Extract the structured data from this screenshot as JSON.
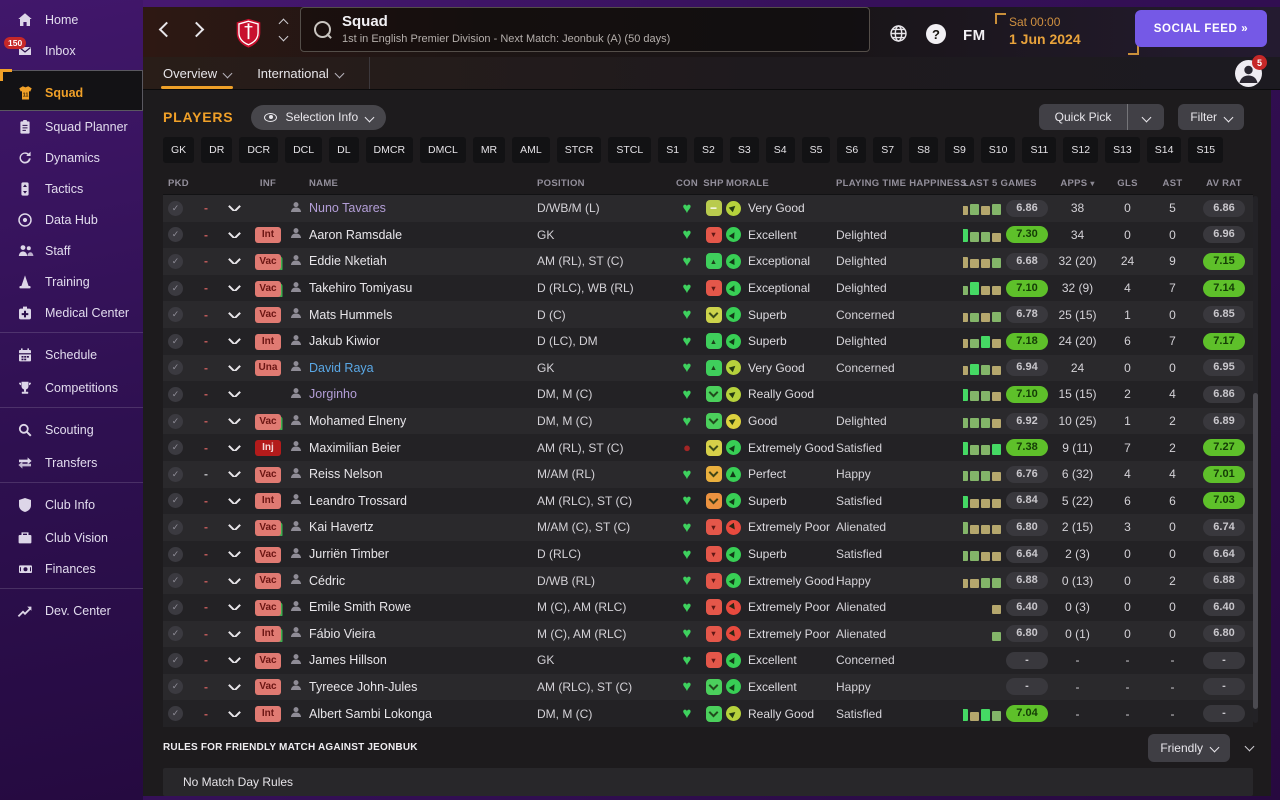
{
  "app": {
    "title": "Squad",
    "subtitle": "1st in English Premier Division - Next Match: Jeonbuk (A) (50 days)",
    "date_line1": "Sat 00:00",
    "date_line2": "1 Jun 2024",
    "social_feed_label": "SOCIAL FEED",
    "social_feed_arrows": "»",
    "fm_logo": "FM",
    "help_label": "?",
    "avatar_badge": "5"
  },
  "tabs": [
    {
      "label": "Overview",
      "active": true
    },
    {
      "label": "International",
      "active": false
    }
  ],
  "sidebar": {
    "items": [
      {
        "label": "Home",
        "icon": "home"
      },
      {
        "label": "Inbox",
        "icon": "inbox",
        "badge": "150"
      },
      {
        "label": "Squad",
        "icon": "shirt",
        "active": true,
        "group": true
      },
      {
        "label": "Squad Planner",
        "icon": "clipboard"
      },
      {
        "label": "Dynamics",
        "icon": "dynamics"
      },
      {
        "label": "Tactics",
        "icon": "tactics"
      },
      {
        "label": "Data Hub",
        "icon": "datahub"
      },
      {
        "label": "Staff",
        "icon": "staff"
      },
      {
        "label": "Training",
        "icon": "training"
      },
      {
        "label": "Medical Center",
        "icon": "medical"
      },
      {
        "label": "Schedule",
        "icon": "calendar",
        "group": true
      },
      {
        "label": "Competitions",
        "icon": "trophy"
      },
      {
        "label": "Scouting",
        "icon": "search",
        "group": true
      },
      {
        "label": "Transfers",
        "icon": "transfers"
      },
      {
        "label": "Club Info",
        "icon": "shield",
        "group": true
      },
      {
        "label": "Club Vision",
        "icon": "briefcase"
      },
      {
        "label": "Finances",
        "icon": "money"
      },
      {
        "label": "Dev. Center",
        "icon": "growth",
        "group": true
      }
    ]
  },
  "players_panel": {
    "title": "PLAYERS",
    "selection_info_label": "Selection Info",
    "quick_pick_label": "Quick Pick",
    "filter_label": "Filter",
    "position_filters": [
      "GK",
      "DR",
      "DCR",
      "DCL",
      "DL",
      "DMCR",
      "DMCL",
      "MR",
      "AML",
      "STCR",
      "STCL",
      "S1",
      "S2",
      "S3",
      "S4",
      "S5",
      "S6",
      "S7",
      "S8",
      "S9",
      "S10",
      "S11",
      "S12",
      "S13",
      "S14",
      "S15"
    ],
    "columns": [
      "PKD",
      "INF",
      "NAME",
      "POSITION",
      "CON",
      "SHP",
      "MORALE",
      "PLAYING TIME HAPPINESS",
      "LAST 5 GAMES",
      "APPS",
      "GLS",
      "AST",
      "AV RAT"
    ]
  },
  "players": [
    {
      "inf": "",
      "inf_style": "",
      "inf_accent": false,
      "name": "Nuno Tavares",
      "name_style": "loan",
      "pos": "D/WB/M (L)",
      "con": "fit",
      "shp": {
        "type": "minus",
        "bg": "#b9cb4e"
      },
      "morale": {
        "text": "Very Good",
        "color": "#b6d23c",
        "rot": -42
      },
      "happiness": "",
      "bars": [
        [
          "g",
          10
        ],
        [
          "t",
          9
        ],
        [
          "g",
          11
        ],
        [
          "t",
          9
        ],
        [
          "g",
          11
        ]
      ],
      "l5": "6.86",
      "l5_green": false,
      "apps": "38",
      "gls": "0",
      "ast": "5",
      "avr": "6.86",
      "avr_green": false
    },
    {
      "inf": "Int",
      "inf_style": "salmon",
      "inf_accent": false,
      "name": "Aaron Ramsdale",
      "name_style": "",
      "pos": "GK",
      "con": "fit",
      "shp": {
        "type": "down",
        "bg": "#e4574a"
      },
      "morale": {
        "text": "Excellent",
        "color": "#38cf55",
        "rot": -60
      },
      "happiness": "Delighted",
      "bars": [
        [
          "g",
          9
        ],
        [
          "b",
          13
        ],
        [
          "g",
          10
        ],
        [
          "g",
          10
        ],
        [
          "t",
          9
        ]
      ],
      "l5": "7.30",
      "l5_green": true,
      "apps": "34",
      "gls": "0",
      "ast": "0",
      "avr": "6.96",
      "avr_green": false
    },
    {
      "inf": "Vac",
      "inf_style": "salmon",
      "inf_accent": true,
      "name": "Eddie Nketiah",
      "name_style": "",
      "pos": "AM (RL), ST (C)",
      "con": "fit",
      "shp": {
        "type": "up",
        "bg": "#3fcf5c"
      },
      "morale": {
        "text": "Exceptional",
        "color": "#38cf55",
        "rot": -65
      },
      "happiness": "Delighted",
      "bars": [
        [
          "t",
          9
        ],
        [
          "t",
          11
        ],
        [
          "t",
          9
        ],
        [
          "t",
          9
        ],
        [
          "g",
          10
        ]
      ],
      "l5": "6.68",
      "l5_green": false,
      "apps": "32 (20)",
      "gls": "24",
      "ast": "9",
      "avr": "7.15",
      "avr_green": true
    },
    {
      "inf": "Vac",
      "inf_style": "salmon",
      "inf_accent": true,
      "name": "Takehiro Tomiyasu",
      "name_style": "",
      "pos": "D (RLC), WB (RL)",
      "con": "fit",
      "shp": {
        "type": "down",
        "bg": "#e4574a"
      },
      "morale": {
        "text": "Exceptional",
        "color": "#38cf55",
        "rot": -65
      },
      "happiness": "Delighted",
      "bars": [
        [
          "t",
          8
        ],
        [
          "g",
          9
        ],
        [
          "b",
          13
        ],
        [
          "t",
          9
        ],
        [
          "t",
          9
        ]
      ],
      "l5": "7.10",
      "l5_green": true,
      "apps": "32 (9)",
      "gls": "4",
      "ast": "7",
      "avr": "7.14",
      "avr_green": true
    },
    {
      "inf": "Vac",
      "inf_style": "salmon",
      "inf_accent": false,
      "name": "Mats Hummels",
      "name_style": "",
      "pos": "D (C)",
      "con": "fit",
      "shp": {
        "type": "chev",
        "bg": "#ccd34b"
      },
      "morale": {
        "text": "Superb",
        "color": "#38cf55",
        "rot": -58
      },
      "happiness": "Concerned",
      "bars": [
        [
          "g",
          9
        ],
        [
          "t",
          9
        ],
        [
          "g",
          9
        ],
        [
          "t",
          9
        ],
        [
          "g",
          10
        ]
      ],
      "l5": "6.78",
      "l5_green": false,
      "apps": "25 (15)",
      "gls": "1",
      "ast": "0",
      "avr": "6.85",
      "avr_green": false
    },
    {
      "inf": "Int",
      "inf_style": "salmon",
      "inf_accent": false,
      "name": "Jakub Kiwior",
      "name_style": "",
      "pos": "D (LC), DM",
      "con": "fit",
      "shp": {
        "type": "up",
        "bg": "#3fcf5c"
      },
      "morale": {
        "text": "Superb",
        "color": "#38cf55",
        "rot": -58
      },
      "happiness": "Delighted",
      "bars": [
        [
          "g",
          10
        ],
        [
          "t",
          9
        ],
        [
          "g",
          9
        ],
        [
          "b",
          12
        ],
        [
          "t",
          9
        ]
      ],
      "l5": "7.18",
      "l5_green": true,
      "apps": "24 (20)",
      "gls": "6",
      "ast": "7",
      "avr": "7.17",
      "avr_green": true
    },
    {
      "inf": "Una",
      "inf_style": "salmon",
      "inf_accent": false,
      "name": "David Raya",
      "name_style": "blue",
      "pos": "GK",
      "con": "fit",
      "shp": {
        "type": "up",
        "bg": "#3fcf5c"
      },
      "morale": {
        "text": "Very Good",
        "color": "#b6d23c",
        "rot": -42
      },
      "happiness": "Concerned",
      "bars": [
        [
          "t",
          9
        ],
        [
          "t",
          9
        ],
        [
          "b",
          11
        ],
        [
          "g",
          10
        ],
        [
          "t",
          9
        ]
      ],
      "l5": "6.94",
      "l5_green": false,
      "apps": "24",
      "gls": "0",
      "ast": "0",
      "avr": "6.95",
      "avr_green": false
    },
    {
      "inf": "",
      "inf_style": "",
      "inf_accent": false,
      "name": "Jorginho",
      "name_style": "loan",
      "pos": "DM, M (C)",
      "con": "fit",
      "shp": {
        "type": "chev",
        "bg": "#4bd05c"
      },
      "morale": {
        "text": "Really Good",
        "color": "#b6d23c",
        "rot": -40
      },
      "happiness": "",
      "bars": [
        [
          "g",
          10
        ],
        [
          "b",
          12
        ],
        [
          "g",
          10
        ],
        [
          "g",
          10
        ],
        [
          "t",
          9
        ]
      ],
      "l5": "7.10",
      "l5_green": true,
      "apps": "15 (15)",
      "gls": "2",
      "ast": "4",
      "avr": "6.86",
      "avr_green": false
    },
    {
      "inf": "Vac",
      "inf_style": "salmon",
      "inf_accent": true,
      "name": "Mohamed Elneny",
      "name_style": "",
      "pos": "DM, M (C)",
      "con": "fit",
      "shp": {
        "type": "chev",
        "bg": "#4bd05c"
      },
      "morale": {
        "text": "Good",
        "color": "#ddd23f",
        "rot": -35
      },
      "happiness": "Delighted",
      "bars": [
        [
          "g",
          10
        ],
        [
          "g",
          10
        ],
        [
          "g",
          10
        ],
        [
          "g",
          10
        ],
        [
          "t",
          9
        ]
      ],
      "l5": "6.92",
      "l5_green": false,
      "apps": "10 (25)",
      "gls": "1",
      "ast": "2",
      "avr": "6.89",
      "avr_green": false
    },
    {
      "inf": "Inj",
      "inf_style": "inj",
      "inf_accent": false,
      "name": "Maximilian Beier",
      "name_style": "",
      "pos": "AM (RL), ST (C)",
      "con": "inj",
      "shp": {
        "type": "chev",
        "bg": "#d6d049"
      },
      "morale": {
        "text": "Extremely Good",
        "color": "#38cf55",
        "rot": -55
      },
      "happiness": "Satisfied",
      "bars": [
        [
          "g",
          10
        ],
        [
          "b",
          13
        ],
        [
          "g",
          10
        ],
        [
          "g",
          10
        ],
        [
          "b",
          11
        ]
      ],
      "l5": "7.38",
      "l5_green": true,
      "apps": "9 (11)",
      "gls": "7",
      "ast": "2",
      "avr": "7.27",
      "avr_green": true
    },
    {
      "inf": "Vac",
      "inf_style": "salmon",
      "inf_accent": false,
      "dash_light": true,
      "name": "Reiss Nelson",
      "name_style": "",
      "pos": "M/AM (RL)",
      "con": "fit",
      "shp": {
        "type": "chev",
        "bg": "#eab03e"
      },
      "morale": {
        "text": "Perfect",
        "color": "#38cf55",
        "rot": -90
      },
      "happiness": "Happy",
      "bars": [
        [
          "t",
          9
        ],
        [
          "g",
          10
        ],
        [
          "g",
          10
        ],
        [
          "g",
          10
        ],
        [
          "t",
          9
        ]
      ],
      "l5": "6.76",
      "l5_green": false,
      "apps": "6 (32)",
      "gls": "4",
      "ast": "4",
      "avr": "7.01",
      "avr_green": true
    },
    {
      "inf": "Int",
      "inf_style": "salmon",
      "inf_accent": false,
      "name": "Leandro Trossard",
      "name_style": "",
      "pos": "AM (RLC), ST (C)",
      "con": "fit",
      "shp": {
        "type": "chev",
        "bg": "#ec9240"
      },
      "morale": {
        "text": "Superb",
        "color": "#38cf55",
        "rot": -58
      },
      "happiness": "Satisfied",
      "bars": [
        [
          "t",
          9
        ],
        [
          "b",
          12
        ],
        [
          "t",
          9
        ],
        [
          "t",
          9
        ],
        [
          "t",
          9
        ]
      ],
      "l5": "6.84",
      "l5_green": false,
      "apps": "5 (22)",
      "gls": "6",
      "ast": "6",
      "avr": "7.03",
      "avr_green": true
    },
    {
      "inf": "Vac",
      "inf_style": "salmon",
      "inf_accent": true,
      "name": "Kai Havertz",
      "name_style": "",
      "pos": "M/AM (C), ST (C)",
      "con": "fit",
      "shp": {
        "type": "down",
        "bg": "#e4574a"
      },
      "morale": {
        "text": "Extremely Poor",
        "color": "#e84a3e",
        "rot": 55
      },
      "happiness": "Alienated",
      "bars": [
        [
          "g",
          10
        ],
        [
          "g",
          12
        ],
        [
          "t",
          9
        ],
        [
          "t",
          9
        ],
        [
          "t",
          9
        ]
      ],
      "l5": "6.80",
      "l5_green": false,
      "apps": "2 (15)",
      "gls": "3",
      "ast": "0",
      "avr": "6.74",
      "avr_green": false
    },
    {
      "inf": "Vac",
      "inf_style": "salmon",
      "inf_accent": false,
      "name": "Jurriën Timber",
      "name_style": "",
      "pos": "D (RLC)",
      "con": "fit",
      "shp": {
        "type": "down",
        "bg": "#e4574a"
      },
      "morale": {
        "text": "Superb",
        "color": "#38cf55",
        "rot": -58
      },
      "happiness": "Satisfied",
      "bars": [
        [
          "g",
          10
        ],
        [
          "g",
          10
        ],
        [
          "g",
          10
        ],
        [
          "t",
          9
        ],
        [
          "t",
          9
        ]
      ],
      "l5": "6.64",
      "l5_green": false,
      "apps": "2 (3)",
      "gls": "0",
      "ast": "0",
      "avr": "6.64",
      "avr_green": false
    },
    {
      "inf": "Vac",
      "inf_style": "salmon",
      "inf_accent": false,
      "name": "Cédric",
      "name_style": "",
      "pos": "D/WB (RL)",
      "con": "fit",
      "shp": {
        "type": "down",
        "bg": "#e4574a"
      },
      "morale": {
        "text": "Extremely Good",
        "color": "#38cf55",
        "rot": -55
      },
      "happiness": "Happy",
      "bars": [
        [
          "b",
          11
        ],
        [
          "t",
          9
        ],
        [
          "t",
          9
        ],
        [
          "g",
          10
        ],
        [
          "g",
          10
        ]
      ],
      "l5": "6.88",
      "l5_green": false,
      "apps": "0 (13)",
      "gls": "0",
      "ast": "2",
      "avr": "6.88",
      "avr_green": false
    },
    {
      "inf": "Vac",
      "inf_style": "salmon",
      "inf_accent": true,
      "name": "Emile Smith Rowe",
      "name_style": "",
      "pos": "M (C), AM (RLC)",
      "con": "fit",
      "shp": {
        "type": "down",
        "bg": "#e4574a"
      },
      "morale": {
        "text": "Extremely Poor",
        "color": "#e84a3e",
        "rot": 55
      },
      "happiness": "Alienated",
      "bars": [
        [
          "t",
          9
        ]
      ],
      "l5": "6.40",
      "l5_green": false,
      "apps": "0 (3)",
      "gls": "0",
      "ast": "0",
      "avr": "6.40",
      "avr_green": false
    },
    {
      "inf": "Int",
      "inf_style": "salmon",
      "inf_accent": true,
      "name": "Fábio Vieira",
      "name_style": "",
      "pos": "M (C), AM (RLC)",
      "con": "fit",
      "shp": {
        "type": "down",
        "bg": "#e4574a"
      },
      "morale": {
        "text": "Extremely Poor",
        "color": "#e84a3e",
        "rot": 55
      },
      "happiness": "Alienated",
      "bars": [
        [
          "g",
          9
        ]
      ],
      "l5": "6.80",
      "l5_green": false,
      "apps": "0 (1)",
      "gls": "0",
      "ast": "0",
      "avr": "6.80",
      "avr_green": false
    },
    {
      "inf": "Vac",
      "inf_style": "salmon",
      "inf_accent": false,
      "name": "James Hillson",
      "name_style": "",
      "pos": "GK",
      "con": "fit",
      "shp": {
        "type": "down",
        "bg": "#e4574a"
      },
      "morale": {
        "text": "Excellent",
        "color": "#38cf55",
        "rot": -60
      },
      "happiness": "Concerned",
      "bars": [],
      "l5": "-",
      "l5_green": false,
      "apps": "-",
      "gls": "-",
      "ast": "-",
      "avr": "-",
      "avr_green": false
    },
    {
      "inf": "Vac",
      "inf_style": "salmon",
      "inf_accent": false,
      "name": "Tyreece John-Jules",
      "name_style": "",
      "pos": "AM (RLC), ST (C)",
      "con": "fit",
      "shp": {
        "type": "chev",
        "bg": "#4bd05c"
      },
      "morale": {
        "text": "Excellent",
        "color": "#38cf55",
        "rot": -60
      },
      "happiness": "Happy",
      "bars": [],
      "l5": "-",
      "l5_green": false,
      "apps": "-",
      "gls": "-",
      "ast": "-",
      "avr": "-",
      "avr_green": false
    },
    {
      "inf": "Int",
      "inf_style": "salmon",
      "inf_accent": false,
      "name": "Albert Sambi Lokonga",
      "name_style": "",
      "pos": "DM, M (C)",
      "con": "fit",
      "shp": {
        "type": "chev",
        "bg": "#4bd05c"
      },
      "morale": {
        "text": "Really Good",
        "color": "#b6d23c",
        "rot": -40
      },
      "happiness": "Satisfied",
      "bars": [
        [
          "t",
          9
        ],
        [
          "b",
          12
        ],
        [
          "t",
          9
        ],
        [
          "b",
          12
        ],
        [
          "g",
          10
        ]
      ],
      "l5": "7.04",
      "l5_green": true,
      "apps": "-",
      "gls": "-",
      "ast": "-",
      "avr": "-",
      "avr_green": false
    }
  ],
  "rules": {
    "header": "RULES FOR FRIENDLY MATCH AGAINST JEONBUK",
    "dropdown_label": "Friendly",
    "body": "No Match Day Rules"
  },
  "colors": {
    "accent_orange": "#f0a028",
    "badge_salmon": "#e07a72",
    "badge_inj_red": "#b31b1b",
    "pill_green": "#5ec02a",
    "social_purple": "#7559e6",
    "heart_green": "#3ed15e",
    "name_loan": "#b49fd8",
    "name_blue": "#5aa8e6",
    "bar_g": "#83b569",
    "bar_b": "#45d964",
    "bar_t": "#b5a76d"
  }
}
